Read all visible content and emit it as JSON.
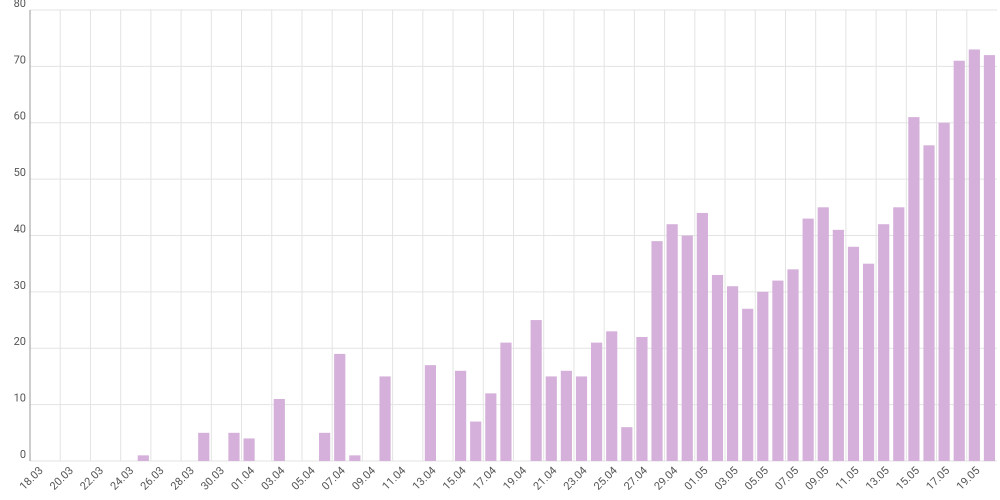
{
  "chart_data": {
    "type": "bar",
    "categories": [
      "18.03",
      null,
      "20.03",
      null,
      "22.03",
      null,
      "24.03",
      null,
      "26.03",
      null,
      "28.03",
      null,
      "30.03",
      null,
      "01.04",
      null,
      "03.04",
      null,
      "05.04",
      null,
      "07.04",
      null,
      "09.04",
      null,
      "11.04",
      null,
      "13.04",
      null,
      "15.04",
      null,
      "17.04",
      null,
      "19.04",
      null,
      "21.04",
      null,
      "23.04",
      null,
      "25.04",
      null,
      "27.04",
      null,
      "29.04",
      null,
      "01.05",
      null,
      "03.05",
      null,
      "05.05",
      null,
      "07.05",
      null,
      "09.05",
      null,
      "11.05",
      null,
      "13.05",
      null,
      "15.05",
      null,
      "17.05",
      null,
      "19.05",
      null
    ],
    "values": [
      0,
      0,
      0,
      0,
      0,
      0,
      0,
      1,
      0,
      0,
      0,
      5,
      0,
      5,
      4,
      0,
      11,
      0,
      0,
      5,
      19,
      1,
      0,
      15,
      0,
      0,
      17,
      0,
      16,
      7,
      12,
      21,
      0,
      25,
      15,
      16,
      15,
      21,
      23,
      6,
      22,
      39,
      42,
      40,
      44,
      33,
      31,
      27,
      30,
      32,
      34,
      43,
      45,
      41,
      38,
      35,
      42,
      45,
      61,
      56,
      60,
      71,
      73,
      72
    ],
    "color": "#d5b0da",
    "ylim": [
      0,
      80
    ],
    "yticks": [
      0,
      10,
      20,
      30,
      40,
      50,
      60,
      70,
      80
    ],
    "grid": true
  }
}
